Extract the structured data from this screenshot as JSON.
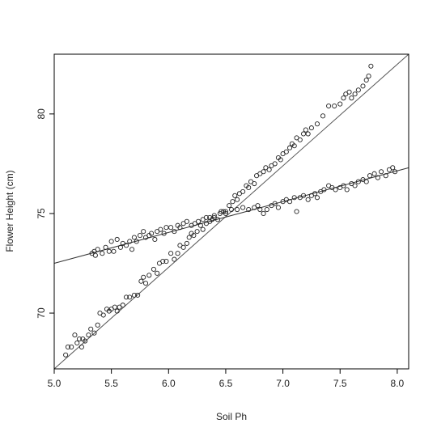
{
  "chart_data": {
    "type": "scatter",
    "title": "",
    "xlabel": "Soil Ph",
    "ylabel": "Flower Height (cm)",
    "xlim": [
      5.0,
      8.1
    ],
    "ylim": [
      67.2,
      83.0
    ],
    "xticks": [
      5.0,
      5.5,
      6.0,
      6.5,
      7.0,
      7.5,
      8.0
    ],
    "yticks": [
      70,
      75,
      80
    ],
    "grid": false,
    "legend": "none",
    "colors": {
      "points": "#222222",
      "line_steep": "#555555",
      "line_flat": "#333333",
      "axes": "#000000"
    },
    "series": [
      {
        "points": [
          [
            5.1,
            67.9
          ],
          [
            5.12,
            68.3
          ],
          [
            5.15,
            68.3
          ],
          [
            5.18,
            68.9
          ],
          [
            5.2,
            68.5
          ],
          [
            5.22,
            68.7
          ],
          [
            5.24,
            68.3
          ],
          [
            5.25,
            68.7
          ],
          [
            5.27,
            68.6
          ],
          [
            5.3,
            68.9
          ],
          [
            5.32,
            69.2
          ],
          [
            5.35,
            69.0
          ],
          [
            5.38,
            69.4
          ],
          [
            5.4,
            70.0
          ],
          [
            5.43,
            69.9
          ],
          [
            5.46,
            70.2
          ],
          [
            5.48,
            70.1
          ],
          [
            5.5,
            70.2
          ],
          [
            5.53,
            70.3
          ],
          [
            5.55,
            70.1
          ],
          [
            5.57,
            70.3
          ],
          [
            5.6,
            70.4
          ],
          [
            5.63,
            70.8
          ],
          [
            5.66,
            70.8
          ],
          [
            5.7,
            70.9
          ],
          [
            5.73,
            70.9
          ],
          [
            5.76,
            71.6
          ],
          [
            5.78,
            71.8
          ],
          [
            5.8,
            71.5
          ],
          [
            5.83,
            71.9
          ],
          [
            5.87,
            72.2
          ],
          [
            5.9,
            72.0
          ],
          [
            5.92,
            72.5
          ],
          [
            5.95,
            72.6
          ],
          [
            5.98,
            72.6
          ],
          [
            6.02,
            73.0
          ],
          [
            6.05,
            72.7
          ],
          [
            6.08,
            73.0
          ],
          [
            6.1,
            73.4
          ],
          [
            6.13,
            73.3
          ],
          [
            6.16,
            73.5
          ],
          [
            6.18,
            73.8
          ],
          [
            6.2,
            74.0
          ],
          [
            6.22,
            73.9
          ],
          [
            6.25,
            74.1
          ],
          [
            6.28,
            74.4
          ],
          [
            6.3,
            74.2
          ],
          [
            6.33,
            74.5
          ],
          [
            6.36,
            74.6
          ],
          [
            6.38,
            74.7
          ],
          [
            6.4,
            74.8
          ],
          [
            6.43,
            74.7
          ],
          [
            6.46,
            75.1
          ],
          [
            6.48,
            75.1
          ],
          [
            6.5,
            75.0
          ],
          [
            6.53,
            75.4
          ],
          [
            6.56,
            75.6
          ],
          [
            6.58,
            75.9
          ],
          [
            6.6,
            75.7
          ],
          [
            6.62,
            76.0
          ],
          [
            6.65,
            76.1
          ],
          [
            6.68,
            76.4
          ],
          [
            6.7,
            76.3
          ],
          [
            6.72,
            76.6
          ],
          [
            6.75,
            76.5
          ],
          [
            6.77,
            76.9
          ],
          [
            6.8,
            77.0
          ],
          [
            6.83,
            77.1
          ],
          [
            6.85,
            77.3
          ],
          [
            6.88,
            77.2
          ],
          [
            6.9,
            77.4
          ],
          [
            6.93,
            77.5
          ],
          [
            6.96,
            77.8
          ],
          [
            6.98,
            77.7
          ],
          [
            7.0,
            78.0
          ],
          [
            7.03,
            78.1
          ],
          [
            7.06,
            78.3
          ],
          [
            7.08,
            78.5
          ],
          [
            7.1,
            78.4
          ],
          [
            7.12,
            78.8
          ],
          [
            7.15,
            78.7
          ],
          [
            7.18,
            79.0
          ],
          [
            7.2,
            79.2
          ],
          [
            7.22,
            79.0
          ],
          [
            7.25,
            79.3
          ],
          [
            7.3,
            79.5
          ],
          [
            7.35,
            79.9
          ],
          [
            7.4,
            80.4
          ],
          [
            7.45,
            80.4
          ],
          [
            7.5,
            80.5
          ],
          [
            7.53,
            80.8
          ],
          [
            7.55,
            81.0
          ],
          [
            7.58,
            81.1
          ],
          [
            7.6,
            80.8
          ],
          [
            7.63,
            81.0
          ],
          [
            7.66,
            81.2
          ],
          [
            7.7,
            81.4
          ],
          [
            7.73,
            81.7
          ],
          [
            7.75,
            81.9
          ],
          [
            7.77,
            82.4
          ]
        ]
      },
      {
        "points": [
          [
            5.33,
            73.0
          ],
          [
            5.35,
            73.1
          ],
          [
            5.36,
            72.9
          ],
          [
            5.38,
            73.2
          ],
          [
            5.42,
            73.0
          ],
          [
            5.45,
            73.3
          ],
          [
            5.48,
            73.1
          ],
          [
            5.5,
            73.6
          ],
          [
            5.52,
            73.1
          ],
          [
            5.55,
            73.7
          ],
          [
            5.58,
            73.3
          ],
          [
            5.6,
            73.5
          ],
          [
            5.63,
            73.4
          ],
          [
            5.66,
            73.6
          ],
          [
            5.68,
            73.2
          ],
          [
            5.7,
            73.8
          ],
          [
            5.72,
            73.6
          ],
          [
            5.75,
            73.9
          ],
          [
            5.78,
            74.1
          ],
          [
            5.8,
            73.8
          ],
          [
            5.83,
            73.9
          ],
          [
            5.85,
            74.0
          ],
          [
            5.88,
            73.7
          ],
          [
            5.9,
            74.1
          ],
          [
            5.93,
            74.2
          ],
          [
            5.96,
            74.0
          ],
          [
            5.98,
            74.3
          ],
          [
            6.02,
            74.3
          ],
          [
            6.05,
            74.1
          ],
          [
            6.08,
            74.4
          ],
          [
            6.1,
            74.3
          ],
          [
            6.13,
            74.5
          ],
          [
            6.16,
            74.6
          ],
          [
            6.2,
            74.4
          ],
          [
            6.23,
            74.5
          ],
          [
            6.26,
            74.6
          ],
          [
            6.3,
            74.7
          ],
          [
            6.33,
            74.8
          ],
          [
            6.36,
            74.8
          ],
          [
            6.4,
            74.9
          ],
          [
            6.45,
            75.0
          ],
          [
            6.5,
            75.1
          ],
          [
            6.55,
            75.2
          ],
          [
            6.6,
            75.2
          ],
          [
            6.65,
            75.3
          ],
          [
            6.7,
            75.2
          ],
          [
            6.75,
            75.3
          ],
          [
            6.78,
            75.4
          ],
          [
            6.8,
            75.2
          ],
          [
            6.83,
            75.0
          ],
          [
            6.86,
            75.2
          ],
          [
            6.9,
            75.4
          ],
          [
            6.93,
            75.5
          ],
          [
            6.96,
            75.3
          ],
          [
            7.0,
            75.6
          ],
          [
            7.03,
            75.7
          ],
          [
            7.06,
            75.6
          ],
          [
            7.1,
            75.8
          ],
          [
            7.12,
            75.1
          ],
          [
            7.15,
            75.8
          ],
          [
            7.18,
            75.9
          ],
          [
            7.22,
            75.7
          ],
          [
            7.25,
            75.9
          ],
          [
            7.28,
            76.0
          ],
          [
            7.3,
            75.8
          ],
          [
            7.33,
            76.1
          ],
          [
            7.36,
            76.2
          ],
          [
            7.4,
            76.4
          ],
          [
            7.43,
            76.3
          ],
          [
            7.46,
            76.2
          ],
          [
            7.5,
            76.3
          ],
          [
            7.53,
            76.4
          ],
          [
            7.56,
            76.2
          ],
          [
            7.6,
            76.5
          ],
          [
            7.63,
            76.4
          ],
          [
            7.66,
            76.6
          ],
          [
            7.7,
            76.7
          ],
          [
            7.73,
            76.6
          ],
          [
            7.76,
            76.9
          ],
          [
            7.8,
            77.0
          ],
          [
            7.83,
            76.8
          ],
          [
            7.86,
            77.1
          ],
          [
            7.9,
            76.9
          ],
          [
            7.93,
            77.2
          ],
          [
            7.96,
            77.3
          ],
          [
            7.98,
            77.1
          ]
        ]
      }
    ],
    "lines": [
      {
        "kind": "steep",
        "x": [
          5.0,
          8.1
        ],
        "y": [
          67.2,
          83.0
        ]
      },
      {
        "kind": "flat",
        "x": [
          5.0,
          8.1
        ],
        "y": [
          72.5,
          77.3
        ]
      }
    ]
  }
}
